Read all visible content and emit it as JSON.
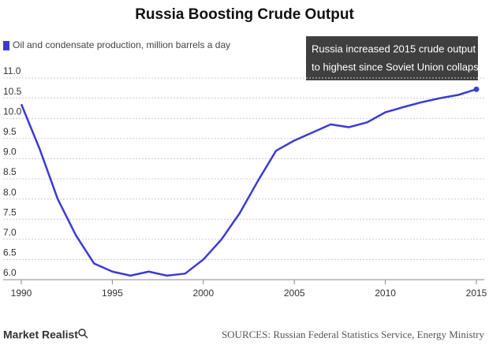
{
  "chart_data": {
    "type": "line",
    "title": "Russia Boosting Crude Output",
    "x": [
      1990,
      1991,
      1992,
      1993,
      1994,
      1995,
      1996,
      1997,
      1998,
      1999,
      2000,
      2001,
      2002,
      2003,
      2004,
      2005,
      2006,
      2007,
      2008,
      2009,
      2010,
      2011,
      2012,
      2013,
      2014,
      2015
    ],
    "series": [
      {
        "name": "Oil and condensate production, million barrels a day",
        "color": "#3b3bd4",
        "values": [
          10.35,
          9.25,
          8.0,
          7.1,
          6.4,
          6.2,
          6.1,
          6.2,
          6.1,
          6.15,
          6.5,
          7.0,
          7.65,
          8.45,
          9.2,
          9.45,
          9.65,
          9.85,
          9.78,
          9.9,
          10.15,
          10.28,
          10.4,
          10.5,
          10.58,
          10.72
        ]
      }
    ],
    "xlim": [
      1990,
      2015
    ],
    "xticks": [
      1990,
      1995,
      2000,
      2005,
      2010,
      2015
    ],
    "ylim": [
      6,
      11
    ],
    "yticks": [
      {
        "value": 6,
        "label": "6.0"
      },
      6.5,
      {
        "value": 7,
        "label": "7.0"
      },
      7.5,
      {
        "value": 8,
        "label": "8.0"
      },
      8.5,
      {
        "value": 9,
        "label": "9.0"
      },
      9.5,
      {
        "value": 10,
        "label": "10.0"
      },
      10.5,
      {
        "value": 11,
        "label": "11.0"
      }
    ],
    "grid": true,
    "annotation": [
      "Russia increased 2015 crude output",
      "to highest since Soviet Union collapse"
    ]
  },
  "footer": {
    "brand": "Market Realist",
    "source": "SOURCES: Russian Federal Statistics Service, Energy Ministry"
  }
}
